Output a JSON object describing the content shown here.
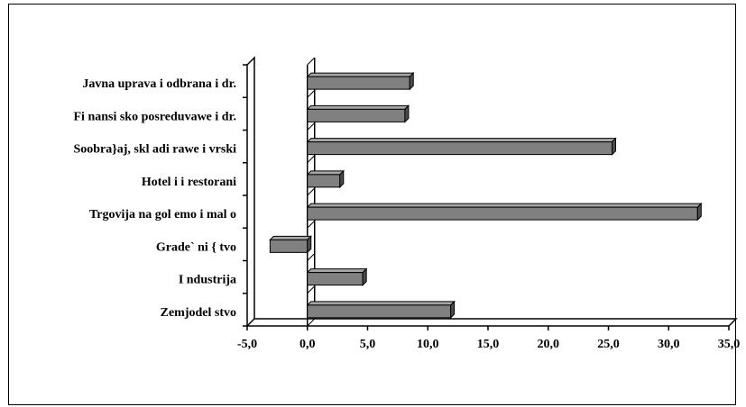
{
  "chart_data": {
    "type": "bar",
    "orientation": "horizontal",
    "style": "3d",
    "title": "",
    "xlabel": "",
    "ylabel": "",
    "categories": [
      "Javna uprava i odbrana i dr.",
      "Finansisko posreduvawe i dr.",
      "Soobra}aj, skladirawe i vrski",
      "Hoteli i restorani",
      "Trgovija na golemo i malo",
      "Grade`ni{tvo",
      "Industrija",
      "Zemjodelstvo"
    ],
    "category_labels_display": [
      "Javna uprava i odbrana i dr.",
      "Fi nansi sko posreduvawe i dr.",
      "Soobra}aj, skl adi rawe i vrski",
      "Hotel i i restorani",
      "Trgovija na gol emo i mal o",
      "Grade` ni { tvo",
      "I ndustrija",
      "Zemjodel stvo"
    ],
    "values": [
      8.5,
      8.1,
      25.3,
      2.7,
      32.4,
      -3.1,
      4.6,
      11.9
    ],
    "xlim": [
      -5,
      35
    ],
    "xticks": [
      -5,
      0,
      5,
      10,
      15,
      20,
      25,
      30,
      35
    ],
    "xtick_labels": [
      "-5,0",
      "0,0",
      "5,0",
      "10,0",
      "15,0",
      "20,0",
      "25,0",
      "30,0",
      "35,0"
    ],
    "bar_color": "#808080",
    "bar_top_color": "#a6a6a6",
    "bar_side_color": "#4d4d4d",
    "grid": false,
    "legend": "none"
  }
}
